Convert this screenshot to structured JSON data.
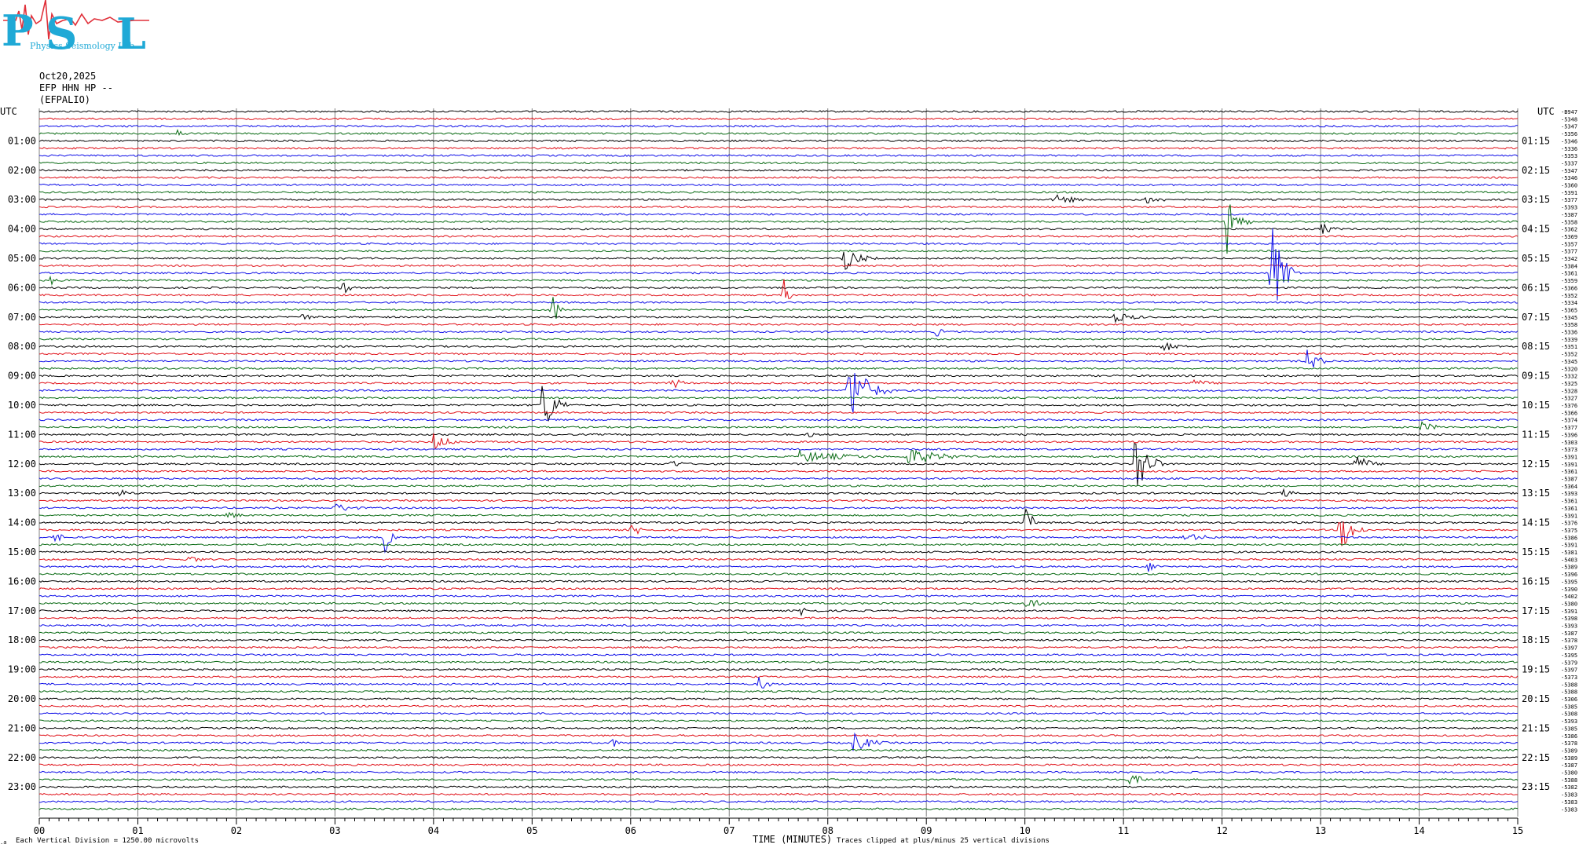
{
  "logo": {
    "letters": [
      "P",
      "S",
      "L"
    ],
    "subtext": "Physics Seismology Lab",
    "color": "#1fa9d6",
    "accent": "#e0303a"
  },
  "header": {
    "date": "Oct20,2025",
    "channel": "EFP HHN HP --",
    "station": "(EFPALIO)"
  },
  "left_axis_title": "UTC",
  "right_axis_title": "UTC",
  "footer": {
    "x_title": "TIME (MINUTES)",
    "left_note": "Each Vertical Division = 1250.00 microvolts",
    "right_note": "Traces clipped at plus/minus 25 vertical divisions",
    "tiny_mark": ".a"
  },
  "colors": {
    "trace_cycle": [
      "#000000",
      "#e0121a",
      "#1010e8",
      "#0a6b14"
    ],
    "grid": "#808080"
  },
  "chart_data": {
    "type": "line",
    "title": "",
    "xlabel": "TIME (MINUTES)",
    "ylabel": "UTC",
    "xlim": [
      0,
      15
    ],
    "x_ticks": [
      "00",
      "01",
      "02",
      "03",
      "04",
      "05",
      "06",
      "07",
      "08",
      "09",
      "10",
      "11",
      "12",
      "13",
      "14",
      "15"
    ],
    "trace_count": 96,
    "trace_minutes": 15,
    "left_labels": [
      "",
      "",
      "",
      "",
      "01:00",
      "",
      "",
      "",
      "02:00",
      "",
      "",
      "",
      "03:00",
      "",
      "",
      "",
      "04:00",
      "",
      "",
      "",
      "05:00",
      "",
      "",
      "",
      "06:00",
      "",
      "",
      "",
      "07:00",
      "",
      "",
      "",
      "08:00",
      "",
      "",
      "",
      "09:00",
      "",
      "",
      "",
      "10:00",
      "",
      "",
      "",
      "11:00",
      "",
      "",
      "",
      "12:00",
      "",
      "",
      "",
      "13:00",
      "",
      "",
      "",
      "14:00",
      "",
      "",
      "",
      "15:00",
      "",
      "",
      "",
      "16:00",
      "",
      "",
      "",
      "17:00",
      "",
      "",
      "",
      "18:00",
      "",
      "",
      "",
      "19:00",
      "",
      "",
      "",
      "20:00",
      "",
      "",
      "",
      "21:00",
      "",
      "",
      "",
      "22:00",
      "",
      "",
      "",
      "23:00",
      "",
      "",
      ""
    ],
    "right_labels": [
      "",
      "",
      "",
      "",
      "01:15",
      "",
      "",
      "",
      "02:15",
      "",
      "",
      "",
      "03:15",
      "",
      "",
      "",
      "04:15",
      "",
      "",
      "",
      "05:15",
      "",
      "",
      "",
      "06:15",
      "",
      "",
      "",
      "07:15",
      "",
      "",
      "",
      "08:15",
      "",
      "",
      "",
      "09:15",
      "",
      "",
      "",
      "10:15",
      "",
      "",
      "",
      "11:15",
      "",
      "",
      "",
      "12:15",
      "",
      "",
      "",
      "13:15",
      "",
      "",
      "",
      "14:15",
      "",
      "",
      "",
      "15:15",
      "",
      "",
      "",
      "16:15",
      "",
      "",
      "",
      "17:15",
      "",
      "",
      "",
      "18:15",
      "",
      "",
      "",
      "19:15",
      "",
      "",
      "",
      "20:15",
      "",
      "",
      "",
      "21:15",
      "",
      "",
      "",
      "22:15",
      "",
      "",
      "",
      "23:15",
      "",
      "",
      ""
    ],
    "trace_offsets": [
      "-B947",
      "-5348",
      "-5347",
      "-5356",
      "-5346",
      "-5336",
      "-5353",
      "-5337",
      "-5347",
      "-5346",
      "-5360",
      "-5391",
      "-5377",
      "-5393",
      "-5387",
      "-5358",
      "-5362",
      "-5369",
      "-5357",
      "-5377",
      "-5342",
      "-5384",
      "-5361",
      "-5359",
      "-5366",
      "-5352",
      "-5334",
      "-5365",
      "-5345",
      "-5358",
      "-5336",
      "-5339",
      "-5351",
      "-5352",
      "-5345",
      "-5320",
      "-5332",
      "-5325",
      "-5328",
      "-5327",
      "-5376",
      "-5366",
      "-5374",
      "-5377",
      "-5396",
      "-5303",
      "-5373",
      "-5391",
      "-5391",
      "-5361",
      "-5387",
      "-5364",
      "-5393",
      "-5361",
      "-5361",
      "-5391",
      "-5376",
      "-5375",
      "-5386",
      "-5391",
      "-5381",
      "-5403",
      "-5389",
      "-5396",
      "-5395",
      "-5390",
      "-5402",
      "-5380",
      "-5391",
      "-5398",
      "-5393",
      "-5387",
      "-5378",
      "-5397",
      "-5395",
      "-5379",
      "-5397",
      "-5373",
      "-5388",
      "-5388",
      "-5306",
      "-5385",
      "-5308",
      "-5393",
      "-5385",
      "-5386",
      "-5378",
      "-5389",
      "-5389",
      "-5387",
      "-5380",
      "-5388",
      "-5382",
      "-5383",
      "-5383",
      "-5383"
    ],
    "events": [
      {
        "trace": 3,
        "minute": 1.4,
        "amp": 1.2,
        "dur": 0.3
      },
      {
        "trace": 12,
        "minute": 10.3,
        "amp": 1.5,
        "dur": 0.6
      },
      {
        "trace": 12,
        "minute": 11.2,
        "amp": 1.5,
        "dur": 0.5
      },
      {
        "trace": 15,
        "minute": 12.05,
        "amp": 9,
        "dur": 0.25
      },
      {
        "trace": 16,
        "minute": 13.0,
        "amp": 2,
        "dur": 0.3
      },
      {
        "trace": 20,
        "minute": 8.15,
        "amp": 4,
        "dur": 0.4
      },
      {
        "trace": 22,
        "minute": 12.5,
        "amp": 16,
        "dur": 0.3
      },
      {
        "trace": 23,
        "minute": 0.1,
        "amp": 1.8,
        "dur": 0.2
      },
      {
        "trace": 24,
        "minute": 3.05,
        "amp": 3,
        "dur": 0.2
      },
      {
        "trace": 25,
        "minute": 7.55,
        "amp": 5,
        "dur": 0.12
      },
      {
        "trace": 27,
        "minute": 5.2,
        "amp": 6,
        "dur": 0.15
      },
      {
        "trace": 28,
        "minute": 2.6,
        "amp": 1.5,
        "dur": 0.4
      },
      {
        "trace": 28,
        "minute": 10.9,
        "amp": 1.5,
        "dur": 0.6
      },
      {
        "trace": 30,
        "minute": 9.1,
        "amp": 1.5,
        "dur": 0.2
      },
      {
        "trace": 32,
        "minute": 11.4,
        "amp": 1.5,
        "dur": 0.4
      },
      {
        "trace": 34,
        "minute": 12.85,
        "amp": 4,
        "dur": 0.3
      },
      {
        "trace": 37,
        "minute": 6.4,
        "amp": 2,
        "dur": 0.3
      },
      {
        "trace": 37,
        "minute": 11.7,
        "amp": 1.2,
        "dur": 0.5
      },
      {
        "trace": 38,
        "minute": 8.2,
        "amp": 11,
        "dur": 0.45
      },
      {
        "trace": 40,
        "minute": 5.1,
        "amp": 9,
        "dur": 0.3
      },
      {
        "trace": 43,
        "minute": 14.0,
        "amp": 1.8,
        "dur": 0.4
      },
      {
        "trace": 44,
        "minute": 7.8,
        "amp": 2.5,
        "dur": 0.1
      },
      {
        "trace": 45,
        "minute": 4.0,
        "amp": 2.5,
        "dur": 0.4
      },
      {
        "trace": 47,
        "minute": 7.7,
        "amp": 1.8,
        "dur": 1.3
      },
      {
        "trace": 47,
        "minute": 8.8,
        "amp": 2.5,
        "dur": 0.9
      },
      {
        "trace": 48,
        "minute": 6.4,
        "amp": 1.5,
        "dur": 0.3
      },
      {
        "trace": 48,
        "minute": 11.1,
        "amp": 13,
        "dur": 0.3
      },
      {
        "trace": 48,
        "minute": 13.35,
        "amp": 3,
        "dur": 0.35
      },
      {
        "trace": 52,
        "minute": 0.8,
        "amp": 1.5,
        "dur": 0.3
      },
      {
        "trace": 52,
        "minute": 12.6,
        "amp": 1.5,
        "dur": 0.3
      },
      {
        "trace": 54,
        "minute": 3.0,
        "amp": 1.5,
        "dur": 0.5
      },
      {
        "trace": 55,
        "minute": 1.9,
        "amp": 1.5,
        "dur": 0.3
      },
      {
        "trace": 56,
        "minute": 10.0,
        "amp": 7,
        "dur": 0.15
      },
      {
        "trace": 57,
        "minute": 6.0,
        "amp": 2,
        "dur": 0.3
      },
      {
        "trace": 57,
        "minute": 13.2,
        "amp": 7,
        "dur": 0.3
      },
      {
        "trace": 58,
        "minute": 0.15,
        "amp": 1.5,
        "dur": 0.3
      },
      {
        "trace": 58,
        "minute": 3.5,
        "amp": 5,
        "dur": 0.15
      },
      {
        "trace": 58,
        "minute": 11.6,
        "amp": 1.2,
        "dur": 0.8
      },
      {
        "trace": 61,
        "minute": 1.5,
        "amp": 1.5,
        "dur": 0.3
      },
      {
        "trace": 62,
        "minute": 11.25,
        "amp": 1.5,
        "dur": 0.3
      },
      {
        "trace": 67,
        "minute": 10.0,
        "amp": 2,
        "dur": 0.4
      },
      {
        "trace": 68,
        "minute": 7.7,
        "amp": 1.5,
        "dur": 0.4
      },
      {
        "trace": 78,
        "minute": 7.3,
        "amp": 2,
        "dur": 0.3
      },
      {
        "trace": 86,
        "minute": 5.8,
        "amp": 2,
        "dur": 0.15
      },
      {
        "trace": 86,
        "minute": 8.25,
        "amp": 3,
        "dur": 0.45
      },
      {
        "trace": 91,
        "minute": 11.05,
        "amp": 1.8,
        "dur": 0.4
      }
    ]
  }
}
